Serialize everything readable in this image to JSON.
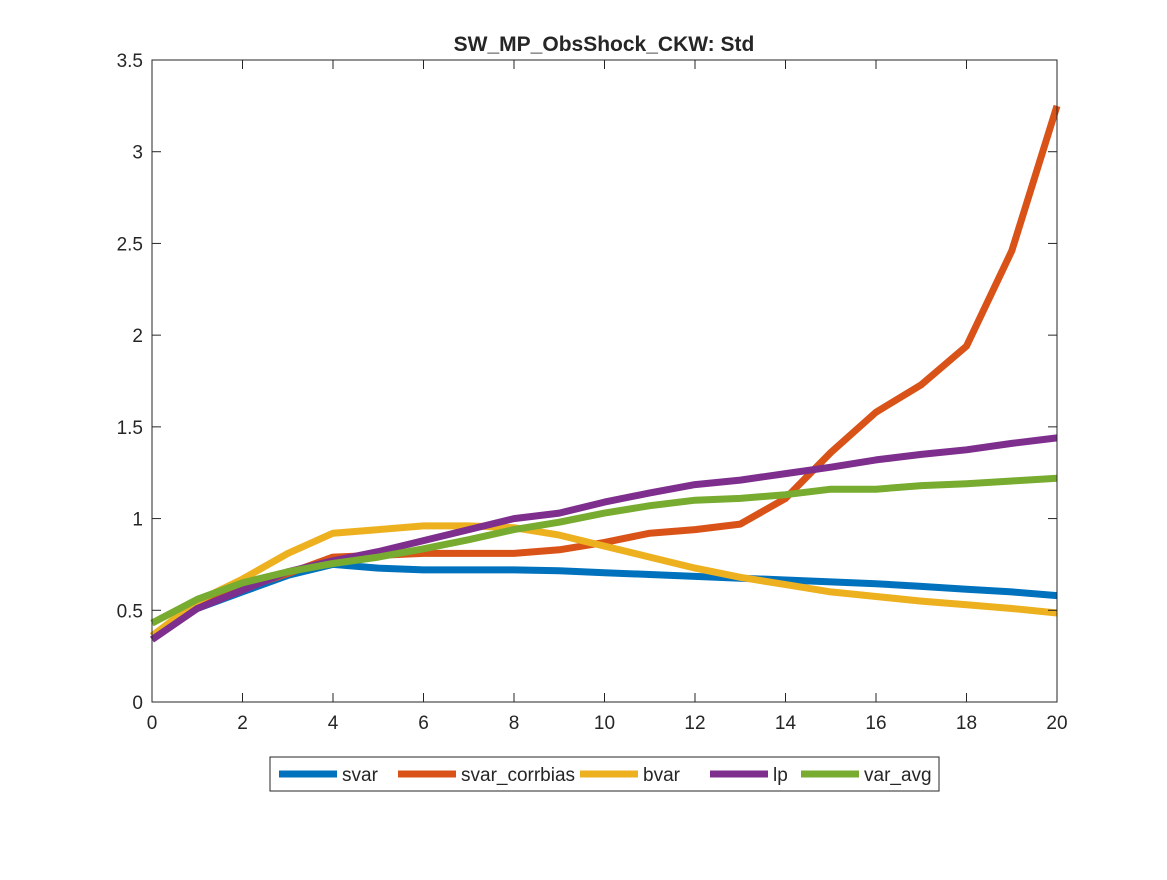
{
  "chart_data": {
    "type": "line",
    "title": "SW_MP_ObsShock_CKW: Std",
    "xlabel": "",
    "ylabel": "",
    "xlim": [
      0,
      20
    ],
    "ylim": [
      0,
      3.5
    ],
    "xticks": [
      0,
      2,
      4,
      6,
      8,
      10,
      12,
      14,
      16,
      18,
      20
    ],
    "xtick_labels": [
      "0",
      "2",
      "4",
      "6",
      "8",
      "10",
      "12",
      "14",
      "16",
      "18",
      "20"
    ],
    "yticks": [
      0,
      0.5,
      1,
      1.5,
      2,
      2.5,
      3,
      3.5
    ],
    "ytick_labels": [
      "0",
      "0.5",
      "1",
      "1.5",
      "2",
      "2.5",
      "3",
      "3.5"
    ],
    "grid": false,
    "legend_position": "bottom-outside, horizontal",
    "x": [
      0,
      1,
      2,
      3,
      4,
      5,
      6,
      7,
      8,
      9,
      10,
      11,
      12,
      13,
      14,
      15,
      16,
      17,
      18,
      19,
      20
    ],
    "series": [
      {
        "name": "svar",
        "color": "#0072BD",
        "values": [
          0.36,
          0.51,
          0.6,
          0.69,
          0.75,
          0.73,
          0.72,
          0.72,
          0.72,
          0.715,
          0.705,
          0.695,
          0.685,
          0.675,
          0.665,
          0.655,
          0.645,
          0.63,
          0.615,
          0.6,
          0.58
        ]
      },
      {
        "name": "svar_corrbias",
        "color": "#D95319",
        "values": [
          0.36,
          0.52,
          0.62,
          0.7,
          0.79,
          0.8,
          0.81,
          0.81,
          0.81,
          0.83,
          0.87,
          0.92,
          0.94,
          0.97,
          1.11,
          1.36,
          1.58,
          1.73,
          1.94,
          2.46,
          3.25
        ]
      },
      {
        "name": "bvar",
        "color": "#EDB120",
        "values": [
          0.36,
          0.55,
          0.67,
          0.81,
          0.92,
          0.94,
          0.96,
          0.96,
          0.95,
          0.91,
          0.85,
          0.79,
          0.73,
          0.68,
          0.64,
          0.6,
          0.575,
          0.55,
          0.53,
          0.51,
          0.485
        ]
      },
      {
        "name": "lp",
        "color": "#7E2F8E",
        "values": [
          0.34,
          0.51,
          0.61,
          0.71,
          0.77,
          0.82,
          0.88,
          0.94,
          1.0,
          1.03,
          1.09,
          1.14,
          1.185,
          1.21,
          1.245,
          1.28,
          1.32,
          1.35,
          1.375,
          1.41,
          1.44
        ]
      },
      {
        "name": "var_avg",
        "color": "#77AC30",
        "values": [
          0.43,
          0.56,
          0.65,
          0.71,
          0.755,
          0.79,
          0.835,
          0.885,
          0.94,
          0.98,
          1.03,
          1.07,
          1.1,
          1.11,
          1.13,
          1.16,
          1.16,
          1.18,
          1.19,
          1.205,
          1.22
        ]
      }
    ]
  }
}
